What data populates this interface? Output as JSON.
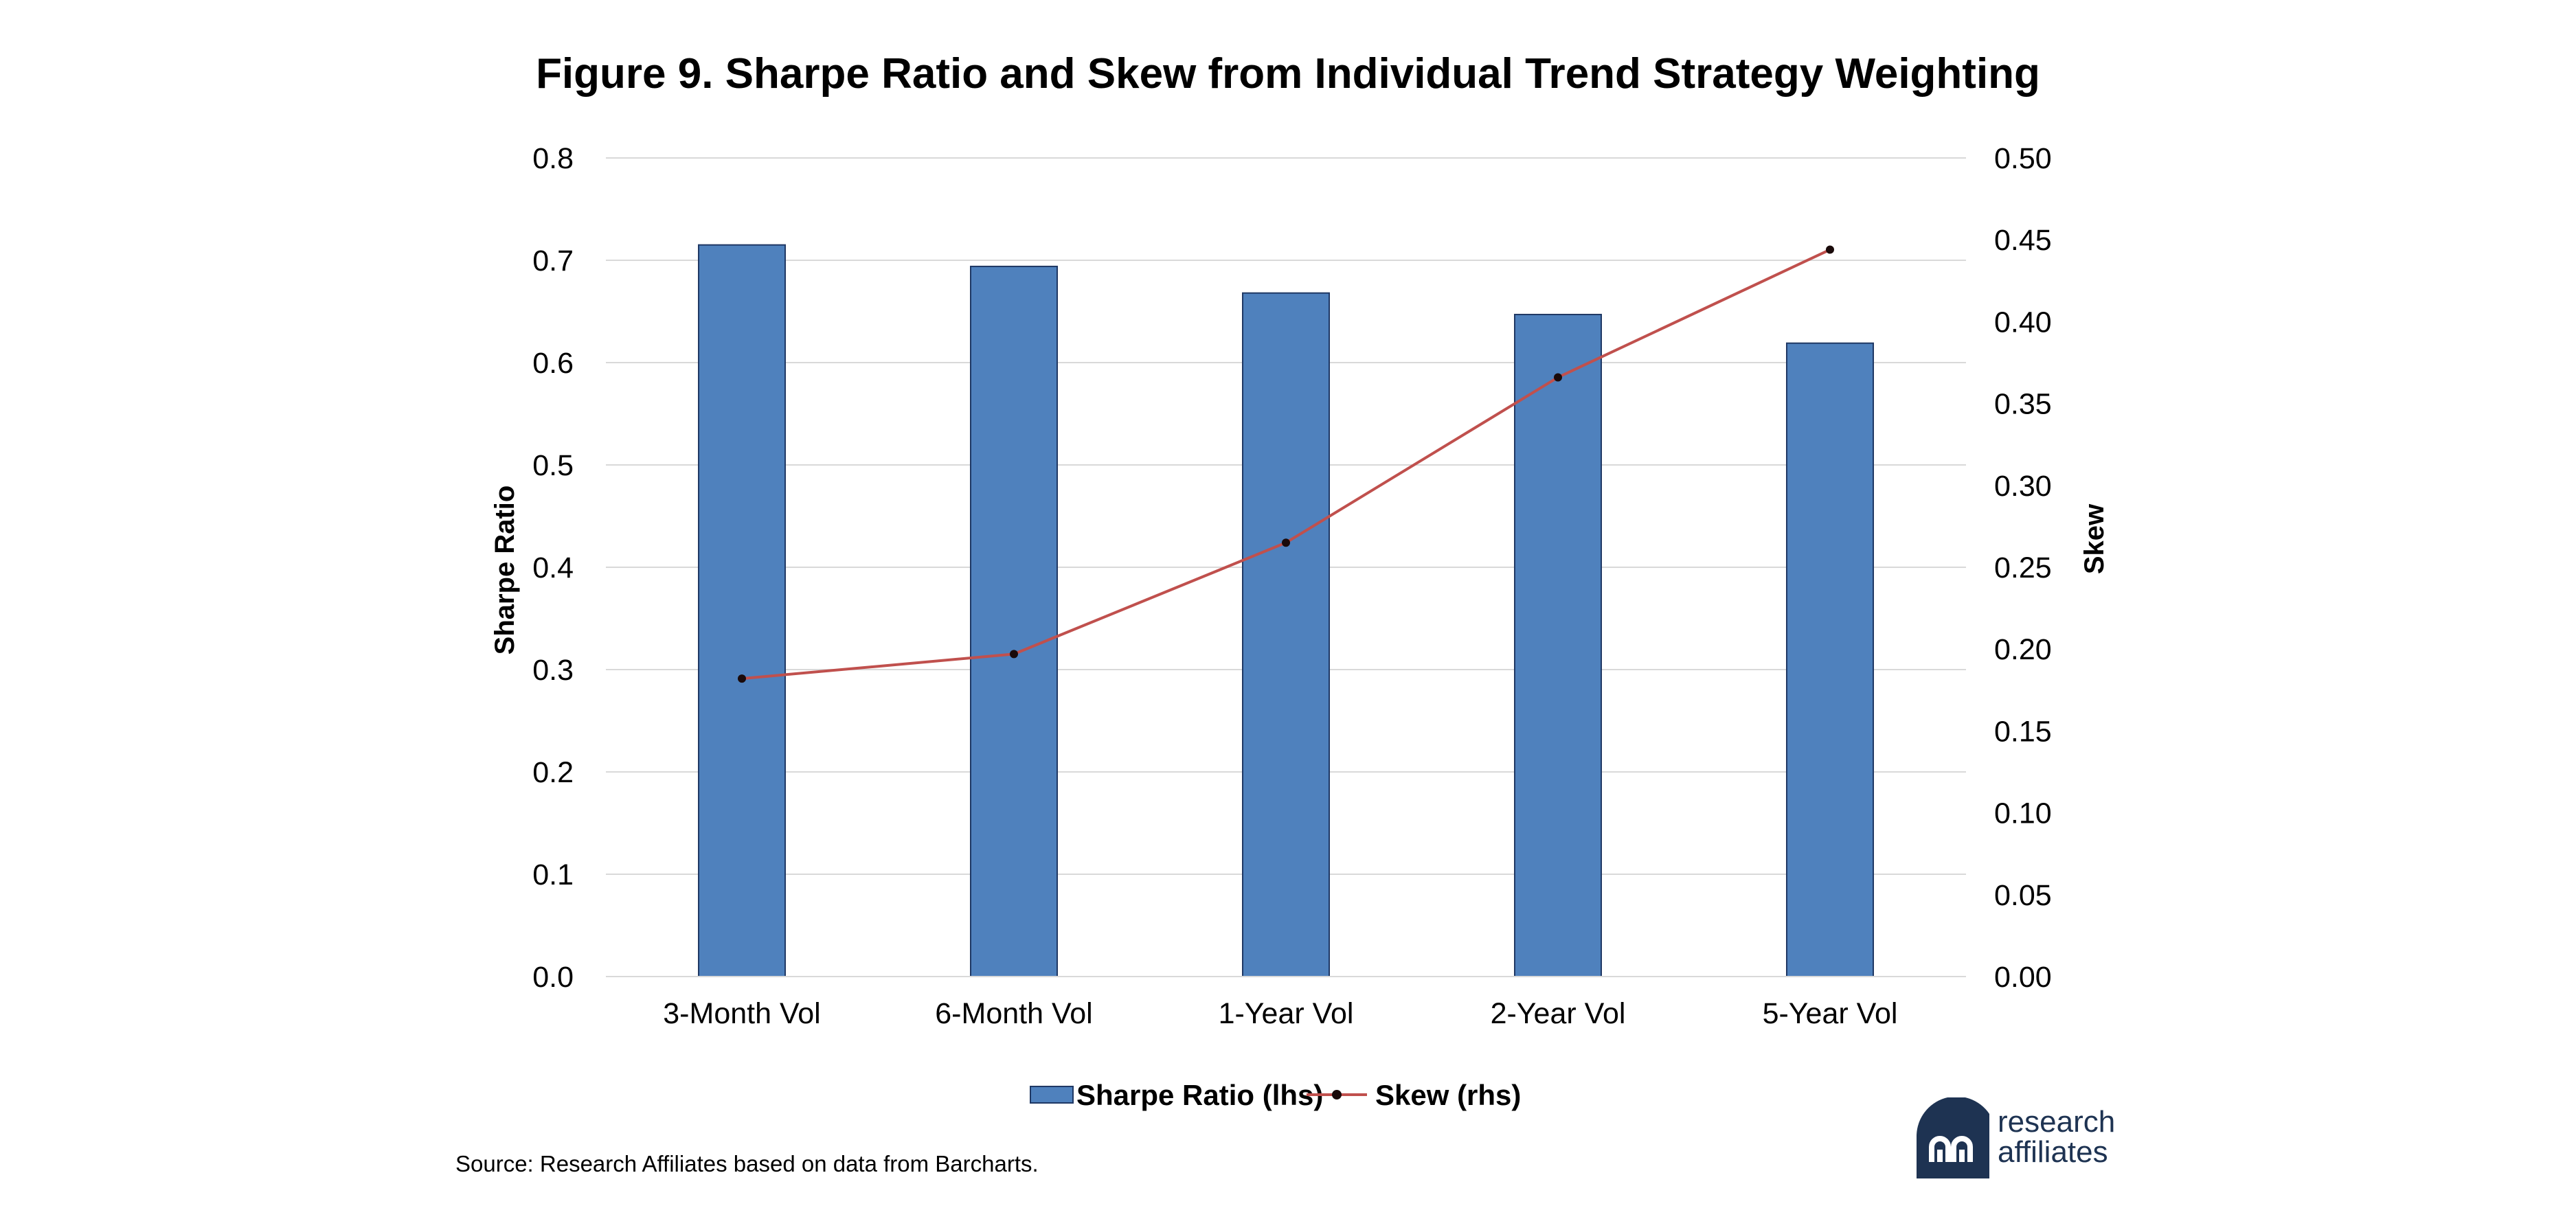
{
  "chart_data": {
    "type": "bar",
    "title": "Figure 9. Sharpe Ratio and Skew from Individual Trend Strategy Weighting",
    "categories": [
      "3-Month Vol",
      "6-Month Vol",
      "1-Year Vol",
      "2-Year Vol",
      "5-Year Vol"
    ],
    "series": [
      {
        "name": "Sharpe Ratio (lhs)",
        "type": "bar",
        "axis": "left",
        "color": "#4f81bd",
        "values": [
          0.715,
          0.694,
          0.668,
          0.647,
          0.619
        ]
      },
      {
        "name": "Skew (rhs)",
        "type": "line",
        "axis": "right",
        "color": "#c0504d",
        "values": [
          0.182,
          0.197,
          0.265,
          0.366,
          0.444
        ]
      }
    ],
    "ylabel": "Sharpe Ratio",
    "y2label": "Skew",
    "ylim": [
      0,
      0.8
    ],
    "y2lim": [
      0,
      0.5
    ],
    "yticks": [
      "0.0",
      "0.1",
      "0.2",
      "0.3",
      "0.4",
      "0.5",
      "0.6",
      "0.7",
      "0.8"
    ],
    "y2ticks": [
      "0.00",
      "0.05",
      "0.10",
      "0.15",
      "0.20",
      "0.25",
      "0.30",
      "0.35",
      "0.40",
      "0.45",
      "0.50"
    ],
    "grid": true,
    "legend_position": "bottom"
  },
  "source": "Source: Research Affiliates based on data from Barcharts.",
  "logo": {
    "line1": "research",
    "line2": "affiliates",
    "color": "#1e3352"
  }
}
